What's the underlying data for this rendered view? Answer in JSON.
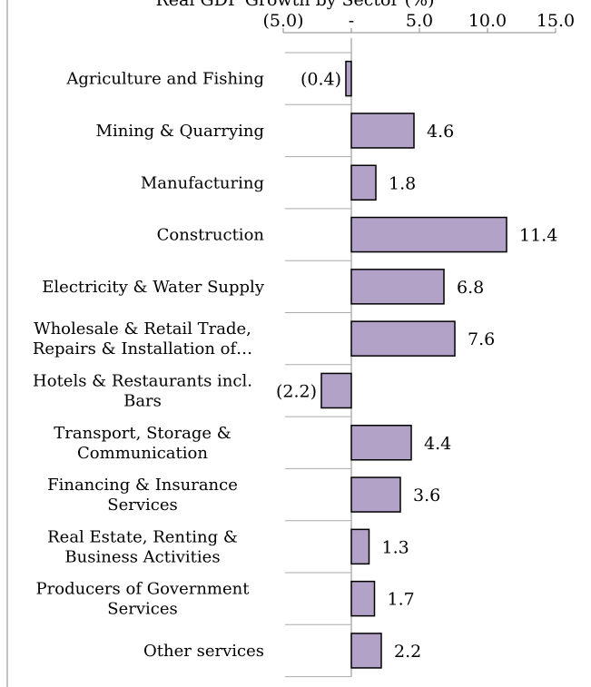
{
  "chart_data": {
    "type": "bar",
    "orientation": "horizontal",
    "title": "Real GDP Growth by Sector (%)",
    "x_ticks": [
      "(5.0)",
      "-",
      "5.0",
      "10.0",
      "15.0"
    ],
    "x_tick_values": [
      -5,
      0,
      5,
      10,
      15
    ],
    "xlim": [
      -5,
      15
    ],
    "categories": [
      [
        "Agriculture and Fishing"
      ],
      [
        "Mining & Quarrying"
      ],
      [
        "Manufacturing"
      ],
      [
        "Construction"
      ],
      [
        "Electricity & Water Supply"
      ],
      [
        "Wholesale & Retail Trade,",
        "Repairs & Installation of…"
      ],
      [
        "Hotels & Restaurants incl.",
        "Bars"
      ],
      [
        "Transport, Storage &",
        "Communication"
      ],
      [
        "Financing & Insurance",
        "Services"
      ],
      [
        "Real Estate, Renting &",
        "Business Activities"
      ],
      [
        "Producers of Government",
        "Services"
      ],
      [
        "Other services"
      ]
    ],
    "values": [
      -0.4,
      4.6,
      1.8,
      11.4,
      6.8,
      7.6,
      -2.2,
      4.4,
      3.6,
      1.3,
      1.7,
      2.2
    ],
    "value_labels": [
      "(0.4)",
      "4.6",
      "1.8",
      "11.4",
      "6.8",
      "7.6",
      "(2.2)",
      "4.4",
      "3.6",
      "1.3",
      "1.7",
      "2.2"
    ],
    "bar_color": "#b3a2c7",
    "bar_border_color": "#000000",
    "grid": false,
    "legend": "none"
  }
}
